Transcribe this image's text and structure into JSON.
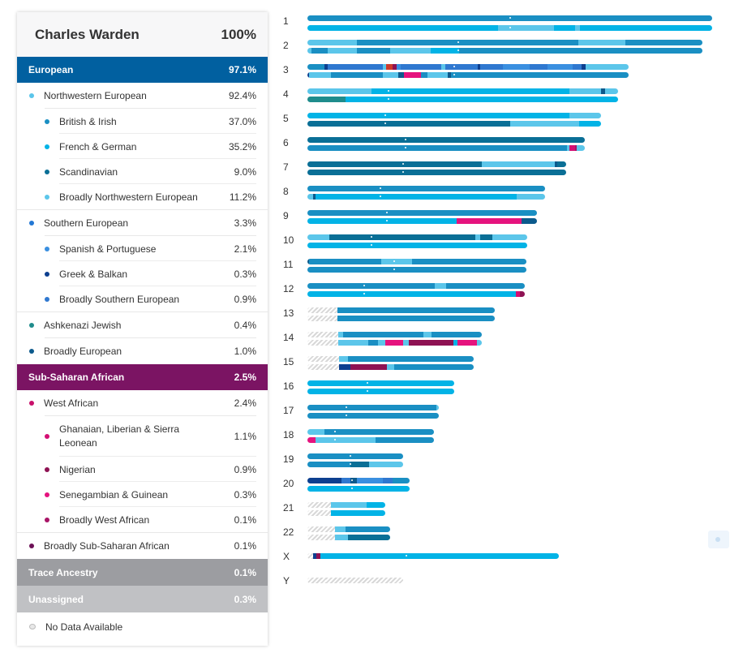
{
  "profile": {
    "name": "Charles Warden",
    "total": "100%"
  },
  "categories": {
    "european": {
      "label": "European",
      "pct": "97.1%",
      "color": "#0160a0"
    },
    "african": {
      "label": "Sub-Saharan African",
      "pct": "2.5%",
      "color": "#7b1463"
    },
    "trace": {
      "label": "Trace Ancestry",
      "pct": "0.1%",
      "color": "#9c9da1"
    },
    "unassigned": {
      "label": "Unassigned",
      "pct": "0.3%",
      "color": "#c0c1c4"
    }
  },
  "populations": {
    "nw": {
      "label": "Northwestern European",
      "pct": "92.4%",
      "color": "#5bc5ea"
    },
    "british": {
      "label": "British & Irish",
      "pct": "37.0%",
      "color": "#1a8fc3"
    },
    "french": {
      "label": "French & German",
      "pct": "35.2%",
      "color": "#02b3e6"
    },
    "scand": {
      "label": "Scandinavian",
      "pct": "9.0%",
      "color": "#0a6f96"
    },
    "bnw": {
      "label": "Broadly Northwestern European",
      "pct": "11.2%",
      "color": "#5cc6ea"
    },
    "south": {
      "label": "Southern European",
      "pct": "3.3%",
      "color": "#2378d4"
    },
    "spanish": {
      "label": "Spanish & Portuguese",
      "pct": "2.1%",
      "color": "#3a8fe0"
    },
    "greek": {
      "label": "Greek & Balkan",
      "pct": "0.3%",
      "color": "#0d3f8f"
    },
    "bsouth": {
      "label": "Broadly Southern European",
      "pct": "0.9%",
      "color": "#2f78d0"
    },
    "ashk": {
      "label": "Ashkenazi Jewish",
      "pct": "0.4%",
      "color": "#1f8c8c"
    },
    "beu": {
      "label": "Broadly European",
      "pct": "1.0%",
      "color": "#0c5a8c"
    },
    "west": {
      "label": "West African",
      "pct": "2.4%",
      "color": "#c8106b"
    },
    "ghana": {
      "label": "Ghanaian, Liberian & Sierra Leonean",
      "pct": "1.1%",
      "color": "#d40f73"
    },
    "nigerian": {
      "label": "Nigerian",
      "pct": "0.9%",
      "color": "#8e1253"
    },
    "seneg": {
      "label": "Senegambian & Guinean",
      "pct": "0.3%",
      "color": "#e5137e"
    },
    "bwest": {
      "label": "Broadly West African",
      "pct": "0.1%",
      "color": "#a81466"
    },
    "bssa": {
      "label": "Broadly Sub-Saharan African",
      "pct": "0.1%",
      "color": "#6d1157"
    }
  },
  "no_data_label": "No Data Available",
  "chromosome_labels": [
    "1",
    "2",
    "3",
    "4",
    "5",
    "6",
    "7",
    "8",
    "9",
    "10",
    "11",
    "12",
    "13",
    "14",
    "15",
    "16",
    "17",
    "18",
    "19",
    "20",
    "21",
    "22",
    "X",
    "Y"
  ]
}
